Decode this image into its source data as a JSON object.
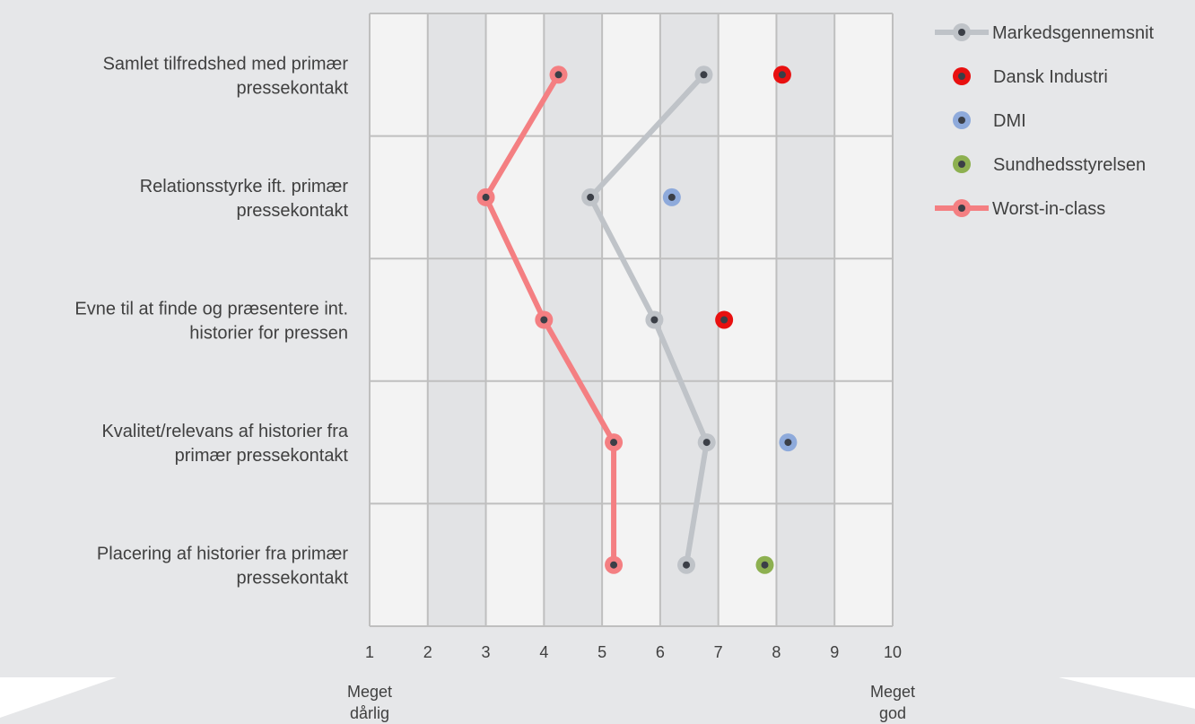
{
  "chart_data": {
    "type": "line",
    "orientation": "horizontal",
    "title": "",
    "xlim": [
      1,
      10
    ],
    "x_ticks": [
      "1",
      "2",
      "3",
      "4",
      "5",
      "6",
      "7",
      "8",
      "9",
      "10"
    ],
    "scale_low_label": [
      "Meget",
      "dårlig"
    ],
    "scale_high_label": [
      "Meget",
      "god"
    ],
    "categories": [
      [
        "Samlet tilfredshed med primær",
        "pressekontakt"
      ],
      [
        "Relationsstyrke ift. primær",
        "pressekontakt"
      ],
      [
        "Evne til at finde og præsentere int.",
        "historier for pressen"
      ],
      [
        "Kvalitet/relevans af historier fra",
        "primær pressekontakt"
      ],
      [
        "Placering af historier fra primær",
        "pressekontakt"
      ]
    ],
    "grid": true,
    "legend_position": "right",
    "series": [
      {
        "name": "Markedsgennemsnit",
        "style": "line",
        "color": "#BFC3C8",
        "values": [
          6.75,
          4.8,
          5.9,
          6.8,
          6.45
        ]
      },
      {
        "name": "Dansk Industri",
        "style": "marker",
        "color": "#E81010",
        "values": [
          8.1,
          null,
          7.1,
          null,
          null
        ]
      },
      {
        "name": "DMI",
        "style": "marker",
        "color": "#8EAADB",
        "values": [
          null,
          6.2,
          null,
          8.2,
          null
        ]
      },
      {
        "name": "Sundhedsstyrelsen",
        "style": "marker",
        "color": "#8DB050",
        "values": [
          null,
          null,
          null,
          null,
          7.8
        ]
      },
      {
        "name": "Worst-in-class",
        "style": "line",
        "color": "#F47F82",
        "values": [
          4.25,
          3.0,
          4.0,
          5.2,
          5.2
        ]
      }
    ]
  }
}
